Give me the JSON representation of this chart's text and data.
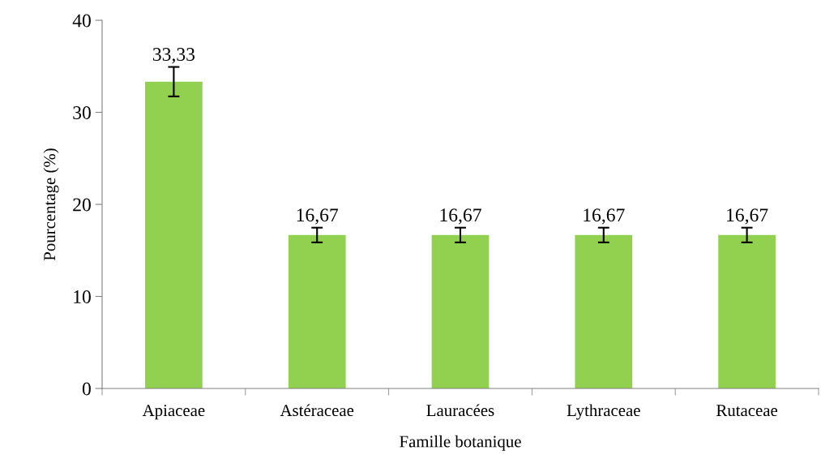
{
  "chart_data": {
    "type": "bar",
    "xlabel": "Famille botanique",
    "ylabel": "Pourcentage (%)",
    "categories": [
      "Apiaceae",
      "Astéraceae",
      "Lauracées",
      "Lythraceae",
      "Rutaceae"
    ],
    "values": [
      33.33,
      16.67,
      16.67,
      16.67,
      16.67
    ],
    "value_labels": [
      "33,33",
      "16,67",
      "16,67",
      "16,67",
      "16,67"
    ],
    "errors": [
      1.6,
      0.8,
      0.8,
      0.8,
      0.8
    ],
    "color": "#92d050",
    "ylim": [
      0,
      40
    ],
    "yticks": [
      0,
      10,
      20,
      30,
      40
    ],
    "grid": false
  }
}
